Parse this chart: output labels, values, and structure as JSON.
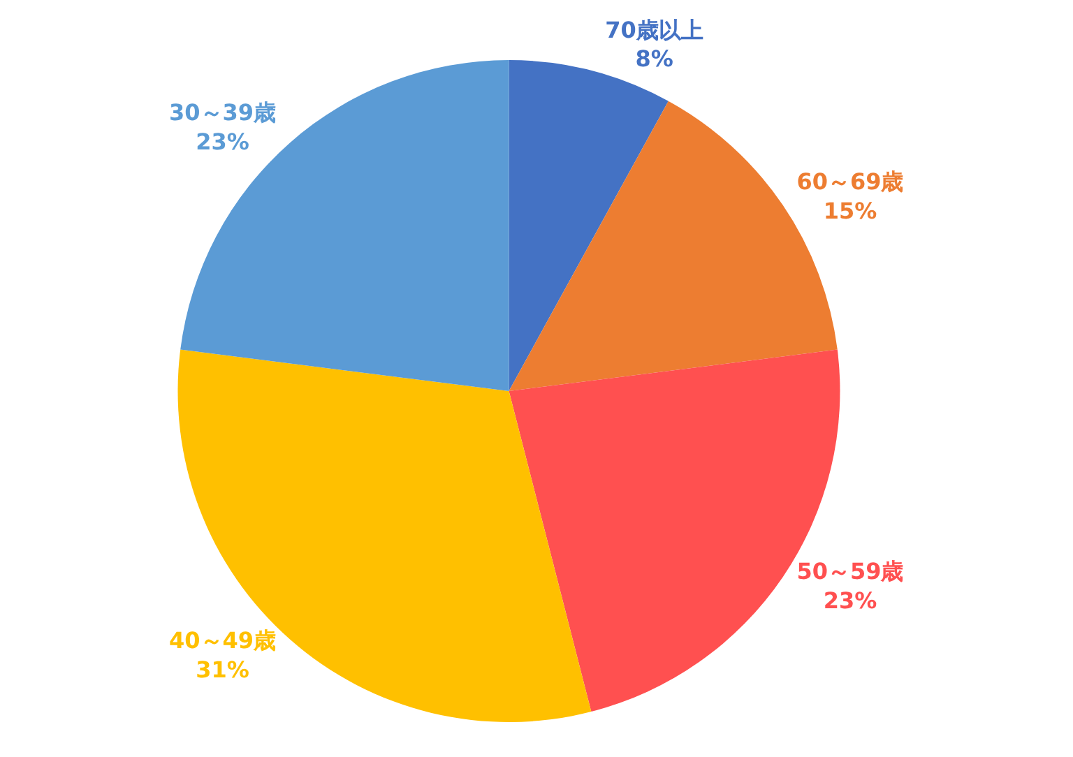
{
  "chart_data": {
    "type": "pie",
    "categories": [
      "70歳以上",
      "60～69歳",
      "50～59歳",
      "40～49歳",
      "30～39歳"
    ],
    "values": [
      8,
      15,
      23,
      31,
      23
    ],
    "value_labels": [
      "8%",
      "15%",
      "23%",
      "31%",
      "23%"
    ],
    "colors": [
      "#4472c4",
      "#ed7d31",
      "#ff5050",
      "#ffc000",
      "#5b9bd5"
    ]
  }
}
